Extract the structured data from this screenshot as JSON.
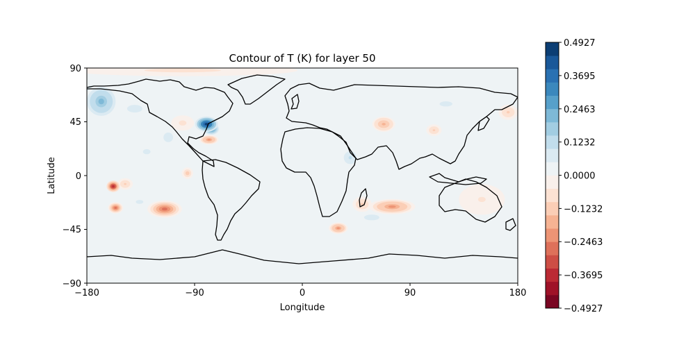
{
  "chart_data": {
    "type": "heatmap",
    "subtype": "filled-contour-map",
    "title": "Contour of T (K) for layer 50",
    "xlabel": "Longitude",
    "ylabel": "Latitude",
    "xlim": [
      -180,
      180
    ],
    "ylim": [
      -90,
      90
    ],
    "xticks": [
      -180,
      -90,
      0,
      90,
      180
    ],
    "yticks": [
      90,
      45,
      0,
      -45,
      -90
    ],
    "xtick_labels": [
      "−180",
      "−90",
      "0",
      "90",
      "180"
    ],
    "ytick_labels": [
      "90",
      "45",
      "0",
      "−45",
      "−90"
    ],
    "grid": false,
    "projection": "PlateCarree",
    "colormap": "RdBu",
    "background_level": 0.02,
    "colorbar": {
      "position": "right",
      "vmin": -0.4927,
      "vmax": 0.4927,
      "n_levels": 20,
      "tick_values": [
        0.4927,
        0.3695,
        0.2463,
        0.1232,
        0.0,
        -0.1232,
        -0.2463,
        -0.3695,
        -0.4927
      ],
      "tick_labels": [
        "0.4927",
        "0.3695",
        "0.2463",
        "0.1232",
        "0.0000",
        "−0.1232",
        "−0.2463",
        "−0.3695",
        "−0.4927"
      ]
    },
    "anomalies": [
      {
        "lon": -80,
        "lat": 43,
        "value": 0.46,
        "rlon": 6,
        "rlat": 4
      },
      {
        "lon": -76,
        "lat": 39,
        "value": 0.3,
        "rlon": 4,
        "rlat": 3
      },
      {
        "lon": -78,
        "lat": 30,
        "value": -0.22,
        "rlon": 5,
        "rlat": 2.5
      },
      {
        "lon": -168,
        "lat": 62,
        "value": 0.22,
        "rlon": 9,
        "rlat": 9
      },
      {
        "lon": -175,
        "lat": 70,
        "value": 0.12,
        "rlon": 6,
        "rlat": 5
      },
      {
        "lon": -140,
        "lat": 56,
        "value": 0.06,
        "rlon": 12,
        "rlat": 6
      },
      {
        "lon": -158,
        "lat": -9,
        "value": -0.38,
        "rlon": 3.5,
        "rlat": 3
      },
      {
        "lon": -148,
        "lat": -7,
        "value": -0.1,
        "rlon": 4,
        "rlat": 3
      },
      {
        "lon": -156,
        "lat": -27,
        "value": -0.25,
        "rlon": 4,
        "rlat": 3
      },
      {
        "lon": -115,
        "lat": -28,
        "value": -0.28,
        "rlon": 9,
        "rlat": 4.5
      },
      {
        "lon": -136,
        "lat": -22,
        "value": 0.07,
        "rlon": 6,
        "rlat": 3
      },
      {
        "lon": -96,
        "lat": 2,
        "value": -0.12,
        "rlon": 3,
        "rlat": 3
      },
      {
        "lon": 30,
        "lat": -44,
        "value": -0.22,
        "rlon": 5,
        "rlat": 3
      },
      {
        "lon": 75,
        "lat": -26,
        "value": -0.22,
        "rlon": 12,
        "rlat": 4
      },
      {
        "lon": 58,
        "lat": -35,
        "value": 0.08,
        "rlon": 8,
        "rlat": 3
      },
      {
        "lon": 50,
        "lat": -24,
        "value": -0.1,
        "rlon": 5,
        "rlat": 4
      },
      {
        "lon": 68,
        "lat": 43,
        "value": -0.15,
        "rlon": 6,
        "rlat": 4
      },
      {
        "lon": 40,
        "lat": 15,
        "value": 0.1,
        "rlon": 5,
        "rlat": 5
      },
      {
        "lon": 110,
        "lat": 38,
        "value": -0.1,
        "rlon": 4,
        "rlat": 3
      },
      {
        "lon": 172,
        "lat": 53,
        "value": -0.1,
        "rlon": 5,
        "rlat": 4
      },
      {
        "lon": -112,
        "lat": 32,
        "value": 0.08,
        "rlon": 5,
        "rlat": 5
      },
      {
        "lon": -130,
        "lat": 20,
        "value": 0.06,
        "rlon": 6,
        "rlat": 4
      },
      {
        "lon": -100,
        "lat": 44,
        "value": -0.06,
        "rlon": 6,
        "rlat": 4
      },
      {
        "lon": 120,
        "lat": 60,
        "value": 0.05,
        "rlon": 20,
        "rlat": 8
      },
      {
        "lon": -30,
        "lat": 60,
        "value": 0.04,
        "rlon": 15,
        "rlat": 8
      },
      {
        "lon": -100,
        "lat": 88,
        "value": -0.06,
        "rlon": 60,
        "rlat": 3
      },
      {
        "lon": -60,
        "lat": -40,
        "value": 0.04,
        "rlon": 25,
        "rlat": 10
      },
      {
        "lon": 150,
        "lat": -20,
        "value": -0.05,
        "rlon": 12,
        "rlat": 8
      },
      {
        "lon": -20,
        "lat": -10,
        "value": 0.03,
        "rlon": 20,
        "rlat": 12
      }
    ]
  }
}
